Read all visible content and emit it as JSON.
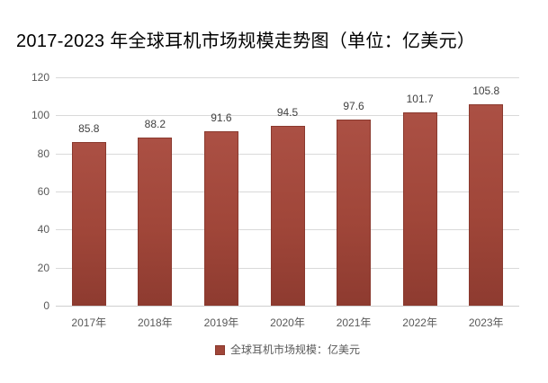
{
  "chart_data": {
    "type": "bar",
    "title": "2017-2023 年全球耳机市场规模走势图（单位：亿美元）",
    "categories": [
      "2017年",
      "2018年",
      "2019年",
      "2020年",
      "2021年",
      "2022年",
      "2023年"
    ],
    "values": [
      85.8,
      88.2,
      91.6,
      94.5,
      97.6,
      101.7,
      105.8
    ],
    "value_labels": [
      "85.8",
      "88.2",
      "91.6",
      "94.5",
      "97.6",
      "101.7",
      "105.8"
    ],
    "unit": "亿美元",
    "xlabel": "",
    "ylabel": "",
    "ylim": [
      0,
      120
    ],
    "yticks": [
      0,
      20,
      40,
      60,
      80,
      100,
      120
    ],
    "grid": true,
    "legend": {
      "label": "全球耳机市场规模：亿美元",
      "position": "bottom-center",
      "marker": "square"
    },
    "colors": {
      "bar_top": "#AB5044",
      "bar_mid": "#A04639",
      "bar_bottom": "#8E3B30",
      "bar_border": "#8A392E",
      "gridline": "#D9D9D9",
      "axis_line": "#CFCFCF",
      "axis_text": "#595959",
      "value_label": "#3F3F3F",
      "title_text": "#000000",
      "background": "#FFFFFF"
    }
  }
}
